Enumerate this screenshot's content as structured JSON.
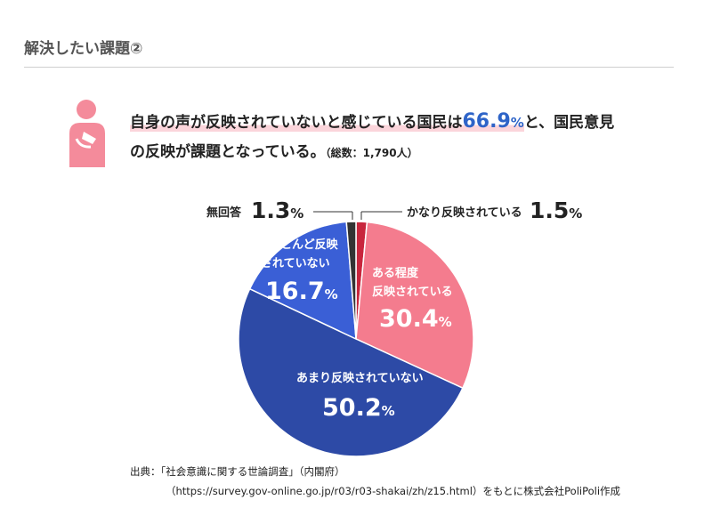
{
  "page": {
    "section_title": "解決したい課題②",
    "headline_part1": "自身の声が反映されていないと感じている国民は",
    "headline_highlight_value": "66.9",
    "headline_highlight_pct": "%",
    "headline_part2": "と、国民意見",
    "headline_line2": "の反映が課題となっている。",
    "headline_note": "（総数：1,790人）",
    "source_line1": "出典：「社会意識に関する世論調査」（内閣府）",
    "source_line2": "（https://survey.gov-online.go.jp/r03/r03-shakai/zh/z15.html）をもとに株式会社PoliPoli作成"
  },
  "colors": {
    "accent_pink": "#f7c6cf",
    "person_icon": "#f48b9b",
    "accent_blue": "#2e64c8"
  },
  "chart_data": {
    "type": "pie",
    "start": "12 o'clock, clockwise",
    "slices": [
      {
        "label": "かなり反映されている",
        "value": 1.5,
        "value_text": "1.5",
        "color": "#c8263d"
      },
      {
        "label": "ある程度反映されている",
        "value": 30.4,
        "value_text": "30.4",
        "color": "#f47c8e"
      },
      {
        "label": "あまり反映されていない",
        "value": 50.2,
        "value_text": "50.2",
        "color": "#2d4aa6"
      },
      {
        "label": "ほとんど反映されていない",
        "value": 16.7,
        "value_text": "16.7",
        "color": "#3a5fd6"
      },
      {
        "label": "無回答",
        "value": 1.3,
        "value_text": "1.3",
        "color": "#333333"
      }
    ],
    "label_lines": {
      "slice0": "かなり反映されている",
      "slice1_a": "ある程度",
      "slice1_b": "反映されている",
      "slice2": "あまり反映されていない",
      "slice3_a": "ほとんど反映",
      "slice3_b": "されていない",
      "slice4": "無回答"
    },
    "unit": "%"
  }
}
